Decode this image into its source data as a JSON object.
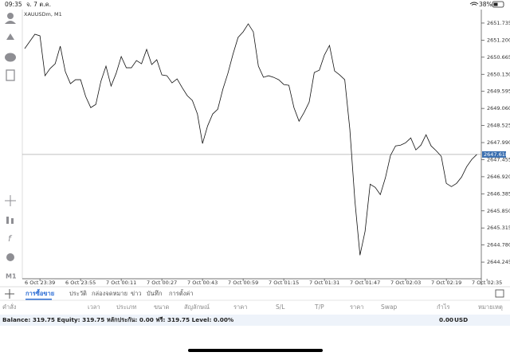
{
  "status_bar": {
    "time": "09:35",
    "date": "จ. 7 ต.ค.",
    "battery": "38%"
  },
  "chart_data": {
    "type": "line",
    "title": "XAUUSDm, M1",
    "color": "#111111",
    "values": [
      2650.935,
      2651.16,
      2651.385,
      2651.335,
      2650.085,
      2650.31,
      2650.46,
      2651.01,
      2650.21,
      2649.835,
      2649.96,
      2649.96,
      2649.435,
      2649.085,
      2649.185,
      2649.91,
      2650.385,
      2649.76,
      2650.16,
      2650.685,
      2650.335,
      2650.335,
      2650.56,
      2650.46,
      2650.91,
      2650.435,
      2650.585,
      2650.11,
      2650.085,
      2649.86,
      2649.985,
      2649.71,
      2649.46,
      2649.31,
      2648.885,
      2647.96,
      2648.51,
      2648.885,
      2649.035,
      2649.66,
      2650.16,
      2650.76,
      2651.285,
      2651.46,
      2651.71,
      2651.46,
      2650.385,
      2650.035,
      2650.085,
      2650.035,
      2649.96,
      2649.81,
      2649.785,
      2649.085,
      2648.66,
      2648.935,
      2649.26,
      2650.185,
      2650.26,
      2650.735,
      2651.035,
      2650.235,
      2650.11,
      2649.96,
      2648.41,
      2646.16,
      2644.46,
      2645.21,
      2646.685,
      2646.585,
      2646.36,
      2646.885,
      2647.585,
      2647.885,
      2647.91,
      2647.985,
      2648.135,
      2647.76,
      2647.91,
      2648.235,
      2647.885,
      2647.735,
      2647.56,
      2646.71,
      2646.61,
      2646.71,
      2646.91,
      2647.235,
      2647.46,
      2647.618
    ],
    "xlim": [
      0,
      92
    ],
    "xticks": [
      {
        "value": 3,
        "label": "6 Oct 23:39"
      },
      {
        "value": 11,
        "label": "6 Oct 23:55"
      },
      {
        "value": 19,
        "label": "7 Oct 00:11"
      },
      {
        "value": 27,
        "label": "7 Oct 00:27"
      },
      {
        "value": 35,
        "label": "7 Oct 00:43"
      },
      {
        "value": 43,
        "label": "7 Oct 00:59"
      },
      {
        "value": 51,
        "label": "7 Oct 01:15"
      },
      {
        "value": 59,
        "label": "7 Oct 01:31"
      },
      {
        "value": 67,
        "label": "7 Oct 01:47"
      },
      {
        "value": 75,
        "label": "7 Oct 02:03"
      },
      {
        "value": 83,
        "label": "7 Oct 02:19"
      },
      {
        "value": 91,
        "label": "7 Oct 02:35"
      }
    ],
    "ylim": [
      2643.723,
      2652.158
    ],
    "yticks": [
      {
        "value": 2651.735,
        "label": "2651.735"
      },
      {
        "value": 2651.2,
        "label": "2651.200"
      },
      {
        "value": 2650.665,
        "label": "2650.665"
      },
      {
        "value": 2650.13,
        "label": "2650.130"
      },
      {
        "value": 2649.595,
        "label": "2649.595"
      },
      {
        "value": 2649.06,
        "label": "2649.060"
      },
      {
        "value": 2648.525,
        "label": "2648.525"
      },
      {
        "value": 2647.99,
        "label": "2647.990"
      },
      {
        "value": 2647.455,
        "label": "2647.455"
      },
      {
        "value": 2646.92,
        "label": "2646.920"
      },
      {
        "value": 2646.385,
        "label": "2646.385"
      },
      {
        "value": 2645.85,
        "label": "2645.850"
      },
      {
        "value": 2645.315,
        "label": "2645.315"
      },
      {
        "value": 2644.78,
        "label": "2644.780"
      },
      {
        "value": 2644.245,
        "label": "2644.245"
      }
    ],
    "current_price": {
      "value": 2647.618,
      "label": "2647.618"
    }
  },
  "timeframe": "M1",
  "tabs": [
    "การซื้อขาย",
    "ประวัติ",
    "กล่องจดหมาย",
    "ข่าว",
    "บันทึก",
    "การตั้งค่า"
  ],
  "active_tab": 0,
  "columns": [
    "คำสั่ง",
    "เวลา",
    "ประเภท",
    "ขนาด",
    "สัญลักษณ์",
    "ราคา",
    "S/L",
    "T/P",
    "ราคา",
    "Swap",
    "กำไร",
    "หมายเหตุ"
  ],
  "summary": {
    "text": "Balance: 319.75 Equity: 319.75 หลักประกัน: 0.00 ฟรี: 319.75 Level: 0.00%",
    "profit": "0.00",
    "currency": "USD"
  }
}
